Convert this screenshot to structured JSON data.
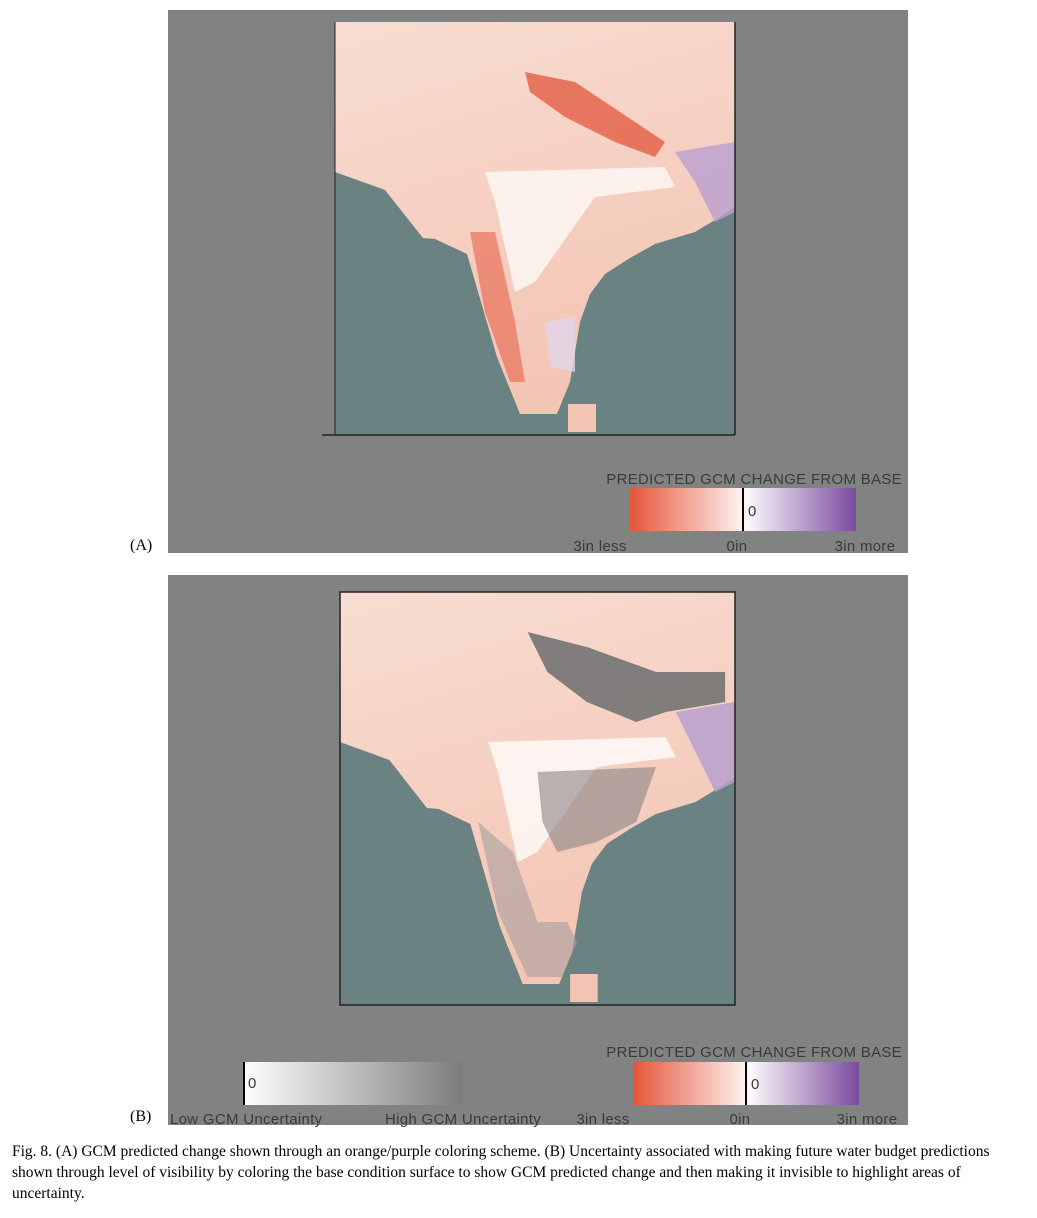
{
  "panels": [
    {
      "label": "(A)",
      "legend": {
        "title": "PREDICTED GCM CHANGE FROM BASE",
        "zero_marker": "0",
        "left": "3in less",
        "middle": "0in",
        "right": "3in more"
      }
    },
    {
      "label": "(B)",
      "uncertainty_legend": {
        "zero_marker": "0",
        "low": "Low GCM Uncertainty",
        "high": "High GCM Uncertainty"
      },
      "legend": {
        "title": "PREDICTED GCM CHANGE FROM BASE",
        "zero_marker": "0",
        "left": "3in less",
        "middle": "0in",
        "right": "3in more"
      }
    }
  ],
  "caption": "Fig. 8.  (A) GCM predicted change shown through an orange/purple coloring scheme. (B) Uncertainty associated with making future water budget predictions shown through level of visibility by coloring the base condition surface to show GCM predicted change and then making it invisible to highlight areas of uncertainty."
}
